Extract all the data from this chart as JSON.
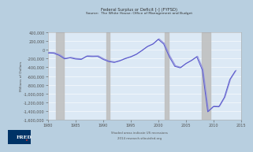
{
  "title": "Federal Surplus or Deficit [-] (FYFSD)",
  "subtitle": "Source:  The White House: Office of Management and Budget",
  "ylabel": "Millions of Dollars",
  "bg_color": "#b8cfe0",
  "plot_bg_color": "#dce9f5",
  "line_color": "#5555cc",
  "line_color_light": "#9999dd",
  "recession_color": "#c0c0c0",
  "recession_alpha": 0.9,
  "recessions": [
    [
      1981.5,
      1982.9
    ],
    [
      1990.6,
      1991.2
    ],
    [
      2001.2,
      2001.9
    ],
    [
      2007.9,
      2009.5
    ]
  ],
  "xmin": 1980,
  "xmax": 2015,
  "ymin": -1600000,
  "ymax": 400000,
  "yticks": [
    400000,
    200000,
    0,
    -200000,
    -400000,
    -600000,
    -800000,
    -1000000,
    -1200000,
    -1400000,
    -1600000
  ],
  "xticks": [
    1980,
    1985,
    1990,
    1995,
    2000,
    2005,
    2010,
    2015
  ],
  "data_x": [
    1980,
    1981,
    1982,
    1983,
    1984,
    1985,
    1986,
    1987,
    1988,
    1989,
    1990,
    1991,
    1992,
    1993,
    1994,
    1995,
    1996,
    1997,
    1998,
    1999,
    2000,
    2001,
    2002,
    2003,
    2004,
    2005,
    2006,
    2007,
    2008,
    2009,
    2010,
    2011,
    2012,
    2013,
    2014
  ],
  "data_y": [
    -73800,
    -78968,
    -127977,
    -207802,
    -185367,
    -212308,
    -221227,
    -149730,
    -155178,
    -152639,
    -221036,
    -269238,
    -290321,
    -255051,
    -203186,
    -163952,
    -107431,
    -21884,
    69270,
    125610,
    236241,
    128236,
    -157758,
    -377585,
    -412727,
    -318346,
    -248181,
    -160701,
    -458553,
    -1412688,
    -1294373,
    -1299593,
    -1086963,
    -679544,
    -483347
  ],
  "fred_bg": "#003366",
  "fred_text": "FRED",
  "bottom_note1": "Shaded areas indicate US recessions",
  "bottom_note2": "2014 research.stlouisfed.org",
  "grid_color": "#ffffff",
  "spine_color": "#aaaaaa",
  "tick_color": "#555555",
  "title_fontsize": 3.8,
  "subtitle_fontsize": 3.2,
  "tick_fontsize": 3.5,
  "ylabel_fontsize": 3.2,
  "note_fontsize": 2.8
}
